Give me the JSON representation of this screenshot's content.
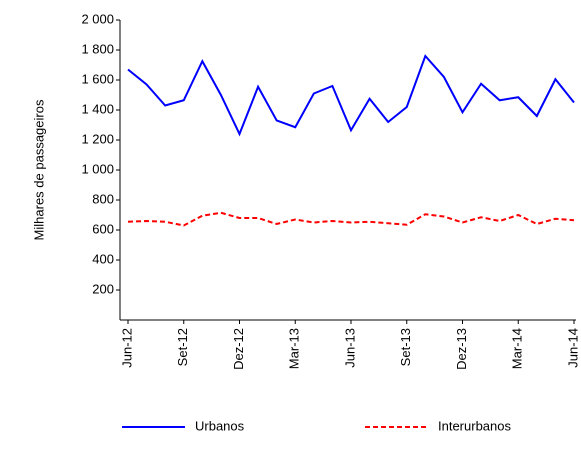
{
  "chart_data": {
    "type": "line",
    "y_label": "Milhares de passageiros",
    "categories": [
      "Jun-12",
      null,
      null,
      "Set-12",
      null,
      null,
      "Dez-12",
      null,
      null,
      "Mar-13",
      null,
      null,
      "Jun-13",
      null,
      null,
      "Set-13",
      null,
      null,
      "Dez-13",
      null,
      null,
      "Mar-14",
      null,
      null,
      "Jun-14"
    ],
    "series": [
      {
        "name": "Urbanos",
        "color": "#0000ff",
        "dash": "solid",
        "values": [
          1670,
          1570,
          1430,
          1465,
          1725,
          1500,
          1240,
          1555,
          1330,
          1285,
          1510,
          1560,
          1265,
          1475,
          1320,
          1420,
          1760,
          1620,
          1385,
          1575,
          1465,
          1485,
          1360,
          1605,
          1450
        ]
      },
      {
        "name": "Interurbanos",
        "color": "#ff0000",
        "dash": "dashed",
        "values": [
          655,
          660,
          655,
          630,
          695,
          715,
          680,
          680,
          640,
          670,
          650,
          660,
          650,
          655,
          645,
          635,
          705,
          690,
          650,
          685,
          660,
          700,
          640,
          675,
          665
        ]
      }
    ],
    "ylim": [
      0,
      2000
    ],
    "yticks": [
      {
        "value": 200,
        "label": "200"
      },
      {
        "value": 400,
        "label": "400"
      },
      {
        "value": 600,
        "label": "600"
      },
      {
        "value": 800,
        "label": "800"
      },
      {
        "value": 1000,
        "label": "1 000"
      },
      {
        "value": 1200,
        "label": "1 200"
      },
      {
        "value": 1400,
        "label": "1 400"
      },
      {
        "value": 1600,
        "label": "1 600"
      },
      {
        "value": 1800,
        "label": "1 800"
      },
      {
        "value": 2000,
        "label": "2 000"
      }
    ],
    "grid": false,
    "legend": "bottom"
  }
}
